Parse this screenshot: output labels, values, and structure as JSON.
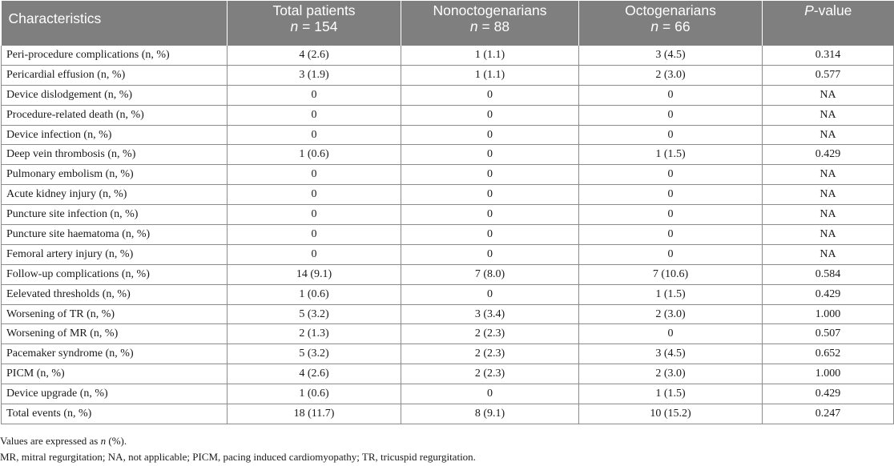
{
  "table": {
    "headers": [
      {
        "line1": "Characteristics",
        "line2_prefix": "",
        "line2_rest": ""
      },
      {
        "line1": "Total patients",
        "line2_prefix": "n",
        "line2_rest": " = 154"
      },
      {
        "line1": "Nonoctogenarians",
        "line2_prefix": "n",
        "line2_rest": " = 88"
      },
      {
        "line1": "Octogenarians",
        "line2_prefix": "n",
        "line2_rest": " = 66"
      },
      {
        "line1_prefix": "P",
        "line1_rest": "-value"
      }
    ],
    "rows": [
      {
        "label": "Peri-procedure complications (n, %)",
        "total": "4 (2.6)",
        "non": "1 (1.1)",
        "oct": "3 (4.5)",
        "p": "0.314"
      },
      {
        "label": "Pericardial effusion (n, %)",
        "total": "3 (1.9)",
        "non": "1 (1.1)",
        "oct": "2 (3.0)",
        "p": "0.577"
      },
      {
        "label": "Device dislodgement (n, %)",
        "total": "0",
        "non": "0",
        "oct": "0",
        "p": "NA"
      },
      {
        "label": "Procedure-related death (n, %)",
        "total": "0",
        "non": "0",
        "oct": "0",
        "p": "NA"
      },
      {
        "label": "Device infection (n, %)",
        "total": "0",
        "non": "0",
        "oct": "0",
        "p": "NA"
      },
      {
        "label": "Deep vein thrombosis (n, %)",
        "total": "1 (0.6)",
        "non": "0",
        "oct": "1 (1.5)",
        "p": "0.429"
      },
      {
        "label": "Pulmonary embolism (n, %)",
        "total": "0",
        "non": "0",
        "oct": "0",
        "p": "NA"
      },
      {
        "label": "Acute kidney injury (n, %)",
        "total": "0",
        "non": "0",
        "oct": "0",
        "p": "NA"
      },
      {
        "label": "Puncture site infection (n, %)",
        "total": "0",
        "non": "0",
        "oct": "0",
        "p": "NA"
      },
      {
        "label": "Puncture site haematoma (n, %)",
        "total": "0",
        "non": "0",
        "oct": "0",
        "p": "NA"
      },
      {
        "label": "Femoral artery injury (n, %)",
        "total": "0",
        "non": "0",
        "oct": "0",
        "p": "NA"
      },
      {
        "label": "Follow-up complications (n, %)",
        "total": "14 (9.1)",
        "non": "7 (8.0)",
        "oct": "7 (10.6)",
        "p": "0.584"
      },
      {
        "label": "Eelevated thresholds (n, %)",
        "total": "1 (0.6)",
        "non": "0",
        "oct": "1 (1.5)",
        "p": "0.429"
      },
      {
        "label": "Worsening of TR (n, %)",
        "total": "5 (3.2)",
        "non": "3 (3.4)",
        "oct": "2 (3.0)",
        "p": "1.000"
      },
      {
        "label": "Worsening of MR (n, %)",
        "total": "2 (1.3)",
        "non": "2 (2.3)",
        "oct": "0",
        "p": "0.507"
      },
      {
        "label": "Pacemaker syndrome (n, %)",
        "total": "5 (3.2)",
        "non": "2 (2.3)",
        "oct": "3 (4.5)",
        "p": "0.652"
      },
      {
        "label": "PICM (n, %)",
        "total": "4 (2.6)",
        "non": "2 (2.3)",
        "oct": "2 (3.0)",
        "p": "1.000"
      },
      {
        "label": "Device upgrade (n, %)",
        "total": "1 (0.6)",
        "non": "0",
        "oct": "1 (1.5)",
        "p": "0.429"
      },
      {
        "label": "Total events (n, %)",
        "total": "18 (11.7)",
        "non": "8 (9.1)",
        "oct": "10 (15.2)",
        "p": "0.247"
      }
    ]
  },
  "notes": {
    "values_prefix": "Values are expressed as ",
    "values_italic": "n",
    "values_suffix": " (%).",
    "abbreviations": "MR, mitral regurgitation; NA, not applicable; PICM, pacing induced cardiomyopathy; TR, tricuspid regurgitation."
  },
  "colors": {
    "header_bg": "#7f7f7f",
    "header_text": "#ffffff",
    "grid": "#8c8c8c"
  }
}
